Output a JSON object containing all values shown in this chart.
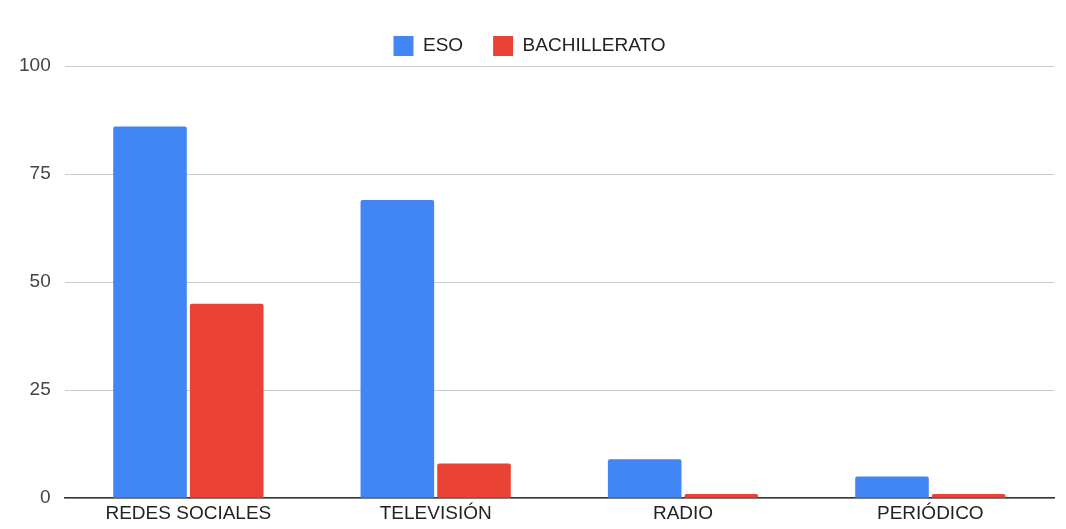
{
  "chart_data": {
    "type": "bar",
    "categories": [
      "REDES SOCIALES",
      "TELEVISIÓN",
      "RADIO",
      "PERIÓDICO"
    ],
    "series": [
      {
        "name": "ESO",
        "color": "#4285f4",
        "values": [
          86,
          69,
          9,
          5
        ]
      },
      {
        "name": "BACHILLERATO",
        "color": "#ea4335",
        "values": [
          45,
          8,
          1,
          1
        ]
      }
    ],
    "ylim": [
      0,
      100
    ],
    "yticks": [
      0,
      25,
      50,
      75,
      100
    ],
    "grid": "y",
    "legend": "top"
  }
}
